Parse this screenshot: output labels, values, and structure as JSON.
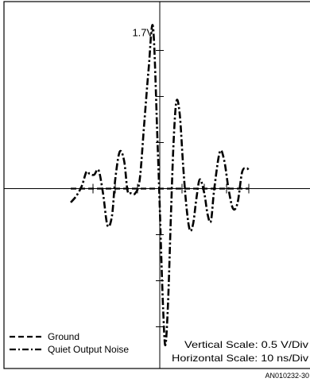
{
  "chart_data": {
    "type": "line",
    "title": "",
    "xlabel": "",
    "ylabel": "",
    "grid": false,
    "legend_position": "bottom-left",
    "units": {
      "x": "ns",
      "y": "V"
    },
    "xlim": [
      -40,
      40
    ],
    "ylim": [
      -1.85,
      1.85
    ],
    "series": [
      {
        "name": "Ground",
        "style": "dashed",
        "x": [
          -40,
          40
        ],
        "y": [
          0.0,
          0.0
        ]
      },
      {
        "name": "Quiet Output Noise",
        "style": "dash-dot",
        "x": [
          -40,
          -37.5,
          -35,
          -33,
          -31.5,
          -29.5,
          -27.5,
          -25.5,
          -23.5,
          -21.5,
          -20,
          -18,
          -16,
          -14.5,
          -13,
          -11,
          -9,
          -7,
          -5,
          -3,
          -1,
          0,
          0.5,
          1.5,
          2.5,
          3.7,
          5,
          6.2,
          7.5,
          9,
          10.5,
          12,
          13.5,
          15,
          16.5,
          18,
          20,
          21.5,
          23,
          24.5,
          27,
          29,
          31,
          33,
          35,
          37,
          39,
          40
        ],
        "y": [
          -0.15,
          -0.08,
          0.03,
          0.18,
          0.16,
          0.15,
          0.2,
          -0.05,
          -0.4,
          -0.3,
          0.1,
          0.4,
          0.3,
          -0.02,
          -0.05,
          -0.05,
          0.1,
          0.7,
          1.3,
          1.75,
          0.5,
          -0.2,
          -0.6,
          -1.3,
          -1.7,
          -1.25,
          -0.3,
          0.5,
          0.95,
          0.8,
          0.25,
          -0.2,
          -0.45,
          -0.38,
          -0.1,
          0.1,
          -0.05,
          -0.28,
          -0.35,
          0.0,
          0.4,
          0.3,
          -0.02,
          -0.22,
          -0.15,
          0.18,
          0.22,
          0.2
        ]
      }
    ],
    "annotations": [
      {
        "text": "1.7V",
        "x": -1,
        "y": 1.7
      }
    ],
    "scale": {
      "vertical": "Vertical Scale: 0.5 V/Div",
      "horizontal": "Horizontal Scale: 10 ns/Div"
    },
    "figure_id": "AN010232-30"
  }
}
